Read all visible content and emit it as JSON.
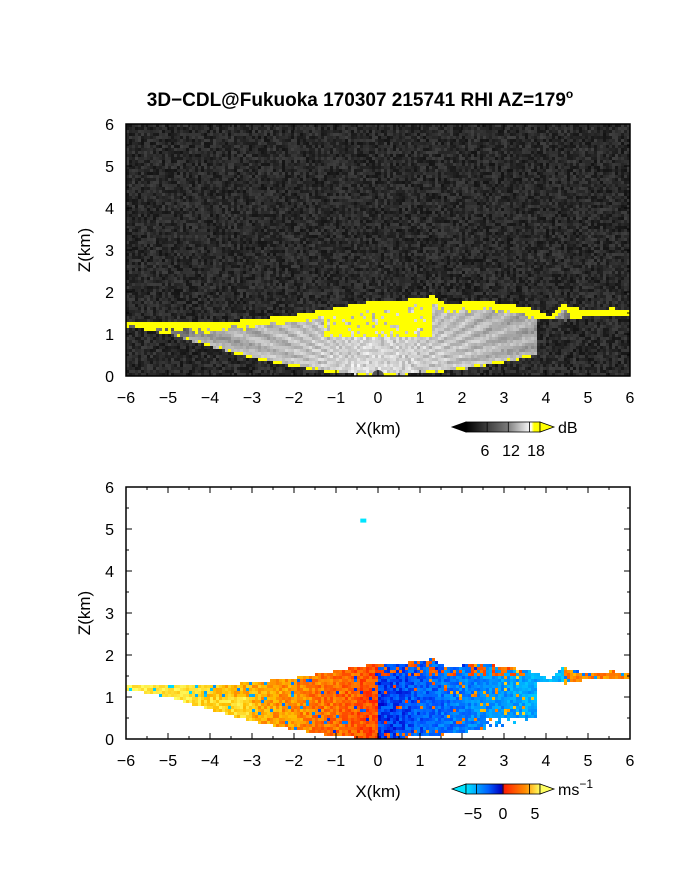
{
  "chart_data": [
    {
      "type": "heatmap",
      "panel": "top",
      "title": "3D−CDL@Fukuoka 170307 215741 RHI AZ=179",
      "title_superscript": "o",
      "xlabel": "X(km)",
      "ylabel": "Z(km)",
      "xlim": [
        -6,
        6
      ],
      "ylim": [
        0,
        6
      ],
      "xticks": [
        "−6",
        "−5",
        "−4",
        "−3",
        "−2",
        "−1",
        "0",
        "1",
        "2",
        "3",
        "4",
        "5",
        "6"
      ],
      "yticks": [
        "0",
        "1",
        "2",
        "3",
        "4",
        "5",
        "6"
      ],
      "colorbar": {
        "unit": "dB",
        "ticks": [
          "6",
          "12",
          "18"
        ],
        "tick_values": [
          6,
          12,
          18
        ],
        "range": [
          0,
          21
        ],
        "colors": [
          "#000000",
          "#ffffff",
          "#ffff00"
        ]
      },
      "top_profile": [
        [
          -6,
          1.32
        ],
        [
          -5,
          1.28
        ],
        [
          -4,
          1.25
        ],
        [
          -3,
          1.35
        ],
        [
          -2,
          1.45
        ],
        [
          -1,
          1.62
        ],
        [
          -0.5,
          1.72
        ],
        [
          0,
          1.78
        ],
        [
          0.5,
          1.8
        ],
        [
          1,
          1.85
        ],
        [
          1.3,
          1.92
        ],
        [
          1.6,
          1.72
        ],
        [
          2,
          1.75
        ],
        [
          2.5,
          1.78
        ],
        [
          3,
          1.72
        ],
        [
          3.5,
          1.65
        ],
        [
          3.8,
          1.55
        ],
        [
          4.1,
          1.42
        ],
        [
          4.4,
          1.7
        ],
        [
          4.8,
          1.6
        ],
        [
          5.2,
          1.55
        ],
        [
          5.6,
          1.62
        ],
        [
          6,
          1.55
        ]
      ],
      "bottom_profile": [
        [
          -6,
          1.18
        ],
        [
          -5,
          1.0
        ],
        [
          -4,
          0.7
        ],
        [
          -3,
          0.42
        ],
        [
          -2,
          0.22
        ],
        [
          -1,
          0.06
        ],
        [
          0,
          0.0
        ],
        [
          1,
          0.05
        ],
        [
          2,
          0.15
        ],
        [
          3,
          0.32
        ],
        [
          3.8,
          0.5
        ],
        [
          4.1,
          1.25
        ],
        [
          5,
          1.42
        ],
        [
          6,
          1.45
        ]
      ]
    },
    {
      "type": "heatmap",
      "panel": "bottom",
      "xlabel": "X(km)",
      "ylabel": "Z(km)",
      "xlim": [
        -6,
        6
      ],
      "ylim": [
        0,
        6
      ],
      "xticks": [
        "−6",
        "−5",
        "−4",
        "−3",
        "−2",
        "−1",
        "0",
        "1",
        "2",
        "3",
        "4",
        "5",
        "6"
      ],
      "yticks": [
        "0",
        "1",
        "2",
        "3",
        "4",
        "5",
        "6"
      ],
      "isolated_point": [
        -0.35,
        5.2
      ],
      "colorbar": {
        "unit": "ms",
        "unit_superscript": "−1",
        "ticks": [
          "−5",
          "0",
          "5"
        ],
        "tick_values": [
          -5,
          0,
          5
        ],
        "range": [
          -7,
          7
        ],
        "colors": [
          "#00e5ff",
          "#0060ff",
          "#0000c0",
          "#ff2000",
          "#ff8c00",
          "#ffff60"
        ]
      }
    }
  ]
}
